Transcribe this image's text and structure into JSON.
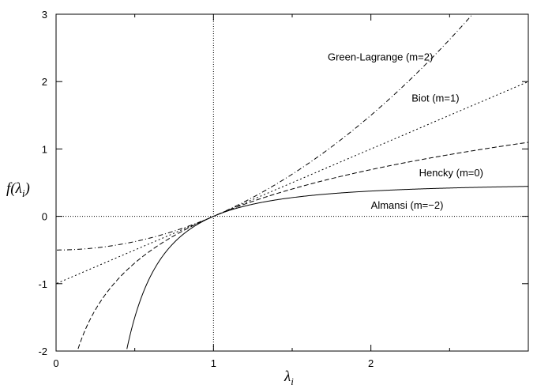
{
  "chart_data": {
    "type": "line",
    "xlabel": {
      "main": "λ",
      "sub": "i"
    },
    "ylabel": {
      "main": "f(λ",
      "sub": "i",
      "close": ")"
    },
    "xlim": [
      0,
      3
    ],
    "ylim": [
      -2,
      3
    ],
    "xticks": [
      0,
      1,
      2
    ],
    "xtick_labels": [
      "0",
      "1",
      "2"
    ],
    "yticks": [
      -2,
      -1,
      0,
      1,
      2,
      3
    ],
    "ytick_labels": [
      "-2",
      "-1",
      "0",
      "1",
      "2",
      "3"
    ],
    "grid": false,
    "reference_lines": {
      "x": 1,
      "y": 0,
      "style": "dotted"
    },
    "series": [
      {
        "name": "Green-Lagrange (m=2)",
        "formula": "(λ^2 - 1)/2",
        "m": 2,
        "dash": "dashdot",
        "x": [
          0,
          0.25,
          0.5,
          0.75,
          1,
          1.25,
          1.5,
          1.75,
          2,
          2.25,
          2.5,
          2.65
        ],
        "y": [
          -0.5,
          -0.469,
          -0.375,
          -0.219,
          0,
          0.281,
          0.625,
          1.031,
          1.5,
          2.031,
          2.625,
          3.011
        ]
      },
      {
        "name": "Biot (m=1)",
        "formula": "λ - 1",
        "m": 1,
        "dash": "dotted",
        "x": [
          0,
          0.5,
          1,
          1.5,
          2,
          2.5,
          3
        ],
        "y": [
          -1,
          -0.5,
          0,
          0.5,
          1,
          1.5,
          2
        ]
      },
      {
        "name": "Hencky (m=0)",
        "formula": "ln λ",
        "m": 0,
        "dash": "dashed",
        "x": [
          0.135,
          0.25,
          0.5,
          0.75,
          1,
          1.5,
          2,
          2.5,
          3
        ],
        "y": [
          -2.0,
          -1.386,
          -0.693,
          -0.288,
          0,
          0.405,
          0.693,
          0.916,
          1.099
        ]
      },
      {
        "name": "Almansi (m=−2)",
        "formula": "(1 - λ^-2)/2",
        "m": -2,
        "dash": "solid",
        "x": [
          0.447,
          0.5,
          0.75,
          1,
          1.5,
          2,
          2.5,
          3
        ],
        "y": [
          -2.0,
          -1.5,
          -0.389,
          0,
          0.278,
          0.375,
          0.42,
          0.444
        ]
      }
    ],
    "annotations": [
      {
        "text": "Green-Lagrange (m=2)",
        "series": "Green-Lagrange (m=2)"
      },
      {
        "text": "Biot (m=1)",
        "series": "Biot (m=1)"
      },
      {
        "text": "Hencky (m=0)",
        "series": "Hencky (m=0)"
      },
      {
        "text": "Almansi (m=−2)",
        "series": "Almansi (m=−2)"
      }
    ]
  }
}
